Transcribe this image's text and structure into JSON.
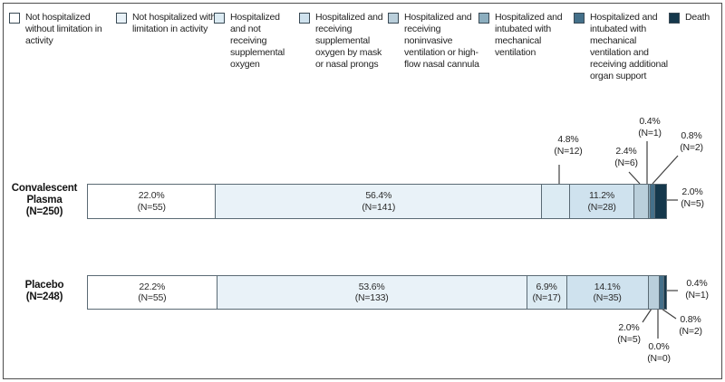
{
  "figure": {
    "kind": "stacked-bar-outcome-figure",
    "background": "#ffffff",
    "frame_color": "#4d4d4d"
  },
  "chart_data": {
    "type": "bar",
    "orientation": "horizontal-stacked",
    "legend_position": "top",
    "categories": [
      "Not hospitalized without limitation in activity",
      "Not hospitalized with limitation in activity",
      "Hospitalized and not receiving supplemental oxygen",
      "Hospitalized and receiving supplemental oxygen by mask or nasal prongs",
      "Hospitalized and receiving noninvasive ventilation or high-flow nasal cannula",
      "Hospitalized and intubated with mechanical ventilation",
      "Hospitalized and intubated with mechanical ventilation and receiving additional organ support",
      "Death"
    ],
    "colors": [
      "#ffffff",
      "#e9f2f8",
      "#dcebf3",
      "#cfe2ee",
      "#bacfdb",
      "#8caebf",
      "#44708a",
      "#15384c"
    ],
    "series": [
      {
        "name": "Convalescent Plasma",
        "name_lines": [
          "Convalescent",
          "Plasma"
        ],
        "n_label": "(N=250)",
        "total": 250,
        "values_pct": [
          22.0,
          56.4,
          4.8,
          11.2,
          2.4,
          0.4,
          0.8,
          2.0
        ],
        "counts": [
          55,
          141,
          12,
          28,
          6,
          1,
          2,
          5
        ],
        "pct_labels": [
          "22.0%",
          "56.4%",
          "4.8%",
          "11.2%",
          "2.4%",
          "0.4%",
          "0.8%",
          "2.0%"
        ],
        "count_labels": [
          "(N=55)",
          "(N=141)",
          "(N=12)",
          "(N=28)",
          "(N=6)",
          "(N=1)",
          "(N=2)",
          "(N=5)"
        ]
      },
      {
        "name": "Placebo",
        "name_lines": [
          "Placebo"
        ],
        "n_label": "(N=248)",
        "total": 248,
        "values_pct": [
          22.2,
          53.6,
          6.9,
          14.1,
          2.0,
          0.0,
          0.8,
          0.4
        ],
        "counts": [
          55,
          133,
          17,
          35,
          5,
          0,
          2,
          1
        ],
        "pct_labels": [
          "22.2%",
          "53.6%",
          "6.9%",
          "14.1%",
          "2.0%",
          "0.0%",
          "0.8%",
          "0.4%"
        ],
        "count_labels": [
          "(N=55)",
          "(N=133)",
          "(N=17)",
          "(N=35)",
          "(N=5)",
          "(N=0)",
          "(N=2)",
          "(N=1)"
        ]
      }
    ]
  }
}
